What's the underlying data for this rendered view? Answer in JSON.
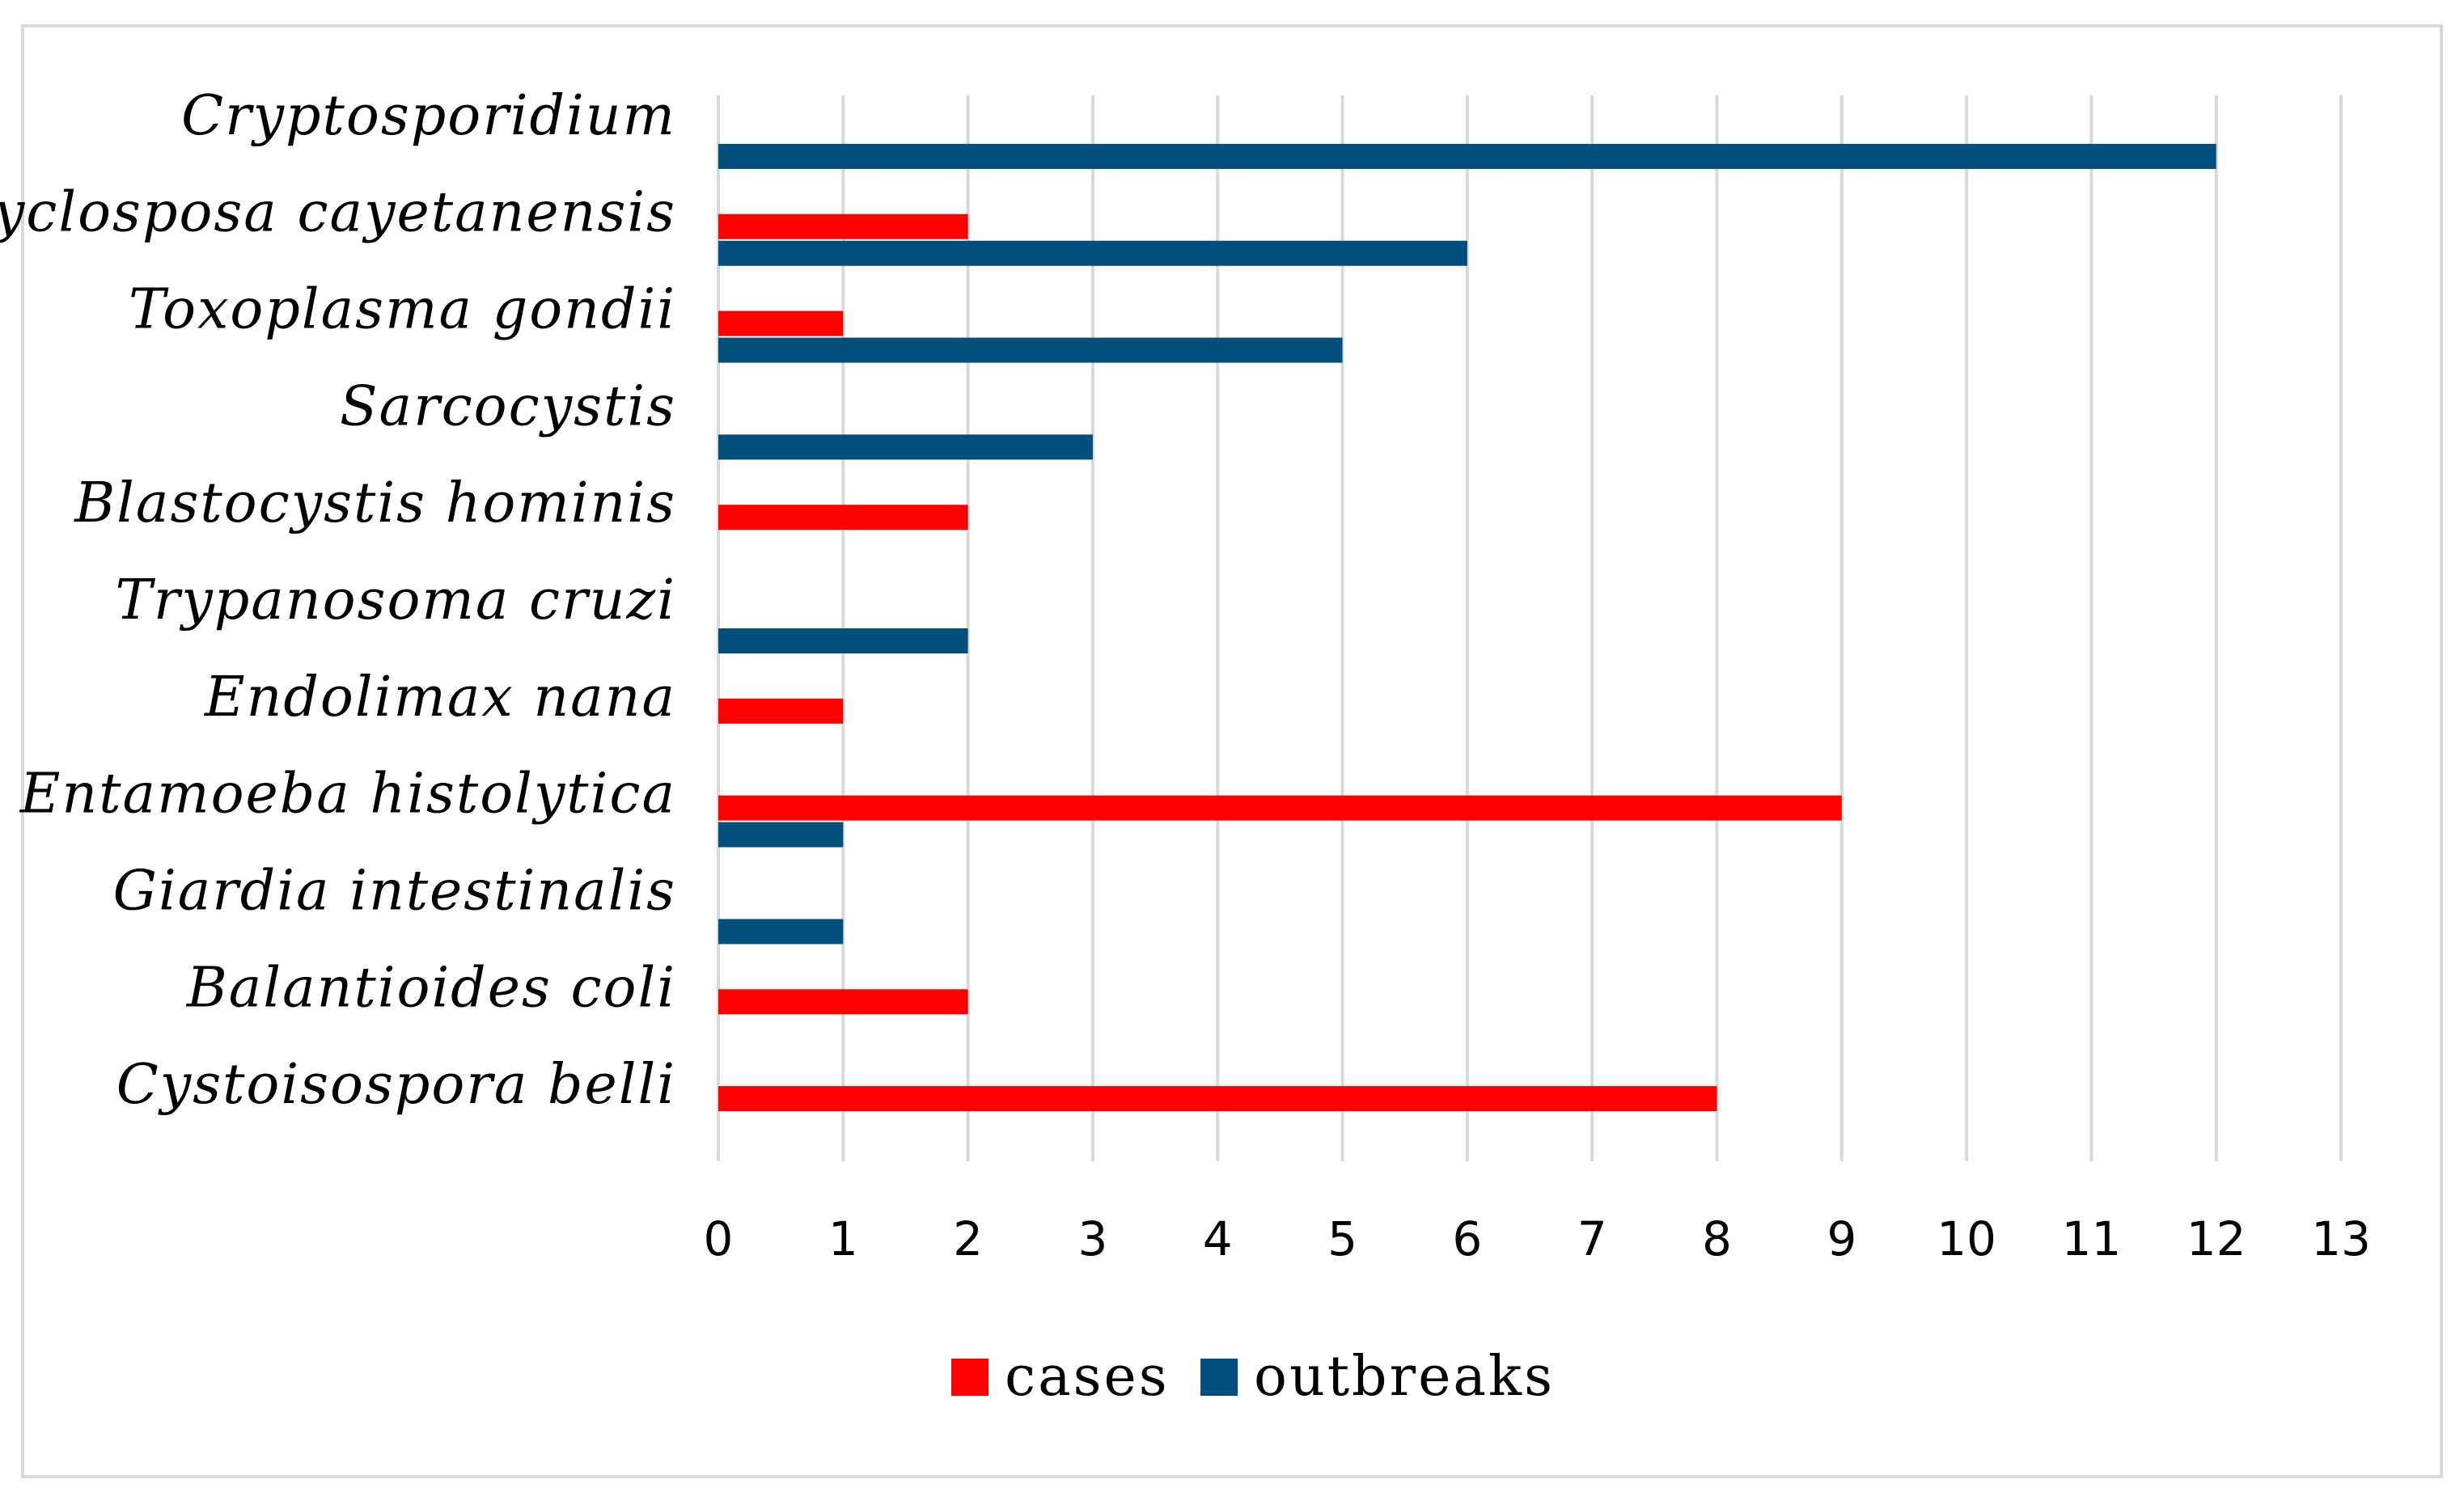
{
  "chart_data": {
    "type": "bar",
    "orientation": "horizontal",
    "title": "",
    "xlabel": "",
    "ylabel": "",
    "categories": [
      "Cryptosporidium",
      "Cyclosposa cayetanensis",
      "Toxoplasma gondii",
      "Sarcocystis",
      "Blastocystis hominis",
      "Trypanosoma cruzi",
      "Endolimax nana",
      "Entamoeba histolytica",
      "Giardia intestinalis",
      "Balantioides coli",
      "Cystoisospora belli"
    ],
    "series": [
      {
        "name": "cases",
        "color": "#ff0000",
        "values": [
          0,
          2,
          1,
          0,
          2,
          0,
          1,
          9,
          0,
          2,
          8
        ]
      },
      {
        "name": "outbreaks",
        "color": "#004f7c",
        "values": [
          12,
          6,
          5,
          3,
          0,
          2,
          0,
          1,
          1,
          0,
          0
        ]
      }
    ],
    "xlim": [
      0,
      13
    ],
    "xticks": [
      "0",
      "1",
      "2",
      "3",
      "4",
      "5",
      "6",
      "7",
      "8",
      "9",
      "10",
      "11",
      "12",
      "13"
    ],
    "grid": true,
    "legend_position": "bottom"
  },
  "colors": {
    "gridline": "#d9d9d9",
    "frame": "#d9d9d9"
  }
}
